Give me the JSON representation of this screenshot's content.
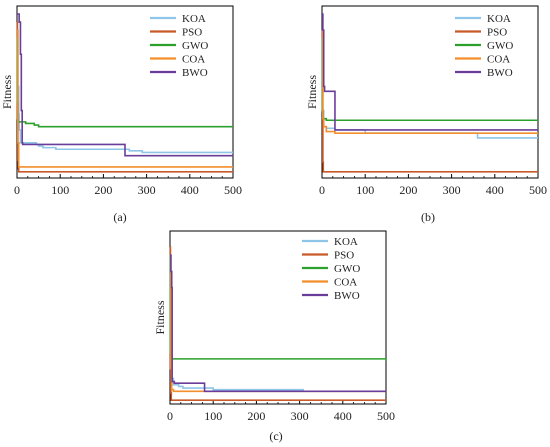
{
  "chart_data": [
    {
      "type": "line",
      "panel_label": "(a)",
      "ylabel": "Fitness",
      "xlim": [
        0,
        500
      ],
      "x_ticks": [
        0,
        100,
        200,
        300,
        400,
        500
      ],
      "grid": false,
      "legend": "top-right",
      "series": [
        {
          "name": "KOA",
          "color": "#8ec5e8",
          "x": [
            0,
            2,
            4,
            5,
            8,
            30,
            40,
            45,
            50,
            60,
            80,
            90,
            100,
            250,
            260,
            290,
            300,
            500
          ],
          "y": [
            0.9,
            0.55,
            0.38,
            0.28,
            0.2,
            0.2,
            0.2,
            0.19,
            0.18,
            0.17,
            0.17,
            0.16,
            0.16,
            0.16,
            0.15,
            0.14,
            0.14,
            0.14
          ]
        },
        {
          "name": "PSO",
          "color": "#c85a28",
          "x": [
            0,
            1,
            2,
            3,
            4,
            500
          ],
          "y": [
            0.95,
            0.35,
            0.09,
            0.04,
            0.02,
            0.02
          ]
        },
        {
          "name": "GWO",
          "color": "#2ca02c",
          "x": [
            0,
            1,
            2,
            20,
            40,
            50,
            100,
            300,
            500
          ],
          "y": [
            0.85,
            0.45,
            0.33,
            0.32,
            0.31,
            0.3,
            0.3,
            0.3,
            0.3
          ]
        },
        {
          "name": "COA",
          "color": "#f28e2b",
          "x": [
            0,
            2,
            4,
            500
          ],
          "y": [
            0.9,
            0.2,
            0.05,
            0.05
          ]
        },
        {
          "name": "BWO",
          "color": "#6a3d9a",
          "x": [
            0,
            5,
            8,
            10,
            12,
            13,
            245,
            250,
            500
          ],
          "y": [
            1.0,
            0.95,
            0.75,
            0.4,
            0.2,
            0.19,
            0.19,
            0.12,
            0.12
          ]
        }
      ]
    },
    {
      "type": "line",
      "panel_label": "(b)",
      "ylabel": "Fitness",
      "xlim": [
        0,
        500
      ],
      "x_ticks": [
        0,
        100,
        200,
        300,
        400,
        500
      ],
      "grid": false,
      "legend": "top-right",
      "series": [
        {
          "name": "KOA",
          "color": "#8ec5e8",
          "x": [
            0,
            2,
            4,
            10,
            30,
            100,
            200,
            360,
            500
          ],
          "y": [
            0.85,
            0.4,
            0.3,
            0.29,
            0.28,
            0.26,
            0.26,
            0.23,
            0.23
          ]
        },
        {
          "name": "PSO",
          "color": "#c85a28",
          "x": [
            0,
            1,
            2,
            3,
            500
          ],
          "y": [
            0.9,
            0.4,
            0.08,
            0.02,
            0.02
          ]
        },
        {
          "name": "GWO",
          "color": "#2ca02c",
          "x": [
            0,
            1,
            2,
            10,
            500
          ],
          "y": [
            0.85,
            0.4,
            0.35,
            0.34,
            0.34
          ]
        },
        {
          "name": "COA",
          "color": "#f28e2b",
          "x": [
            0,
            2,
            4,
            10,
            20,
            30,
            50,
            100,
            500
          ],
          "y": [
            0.9,
            0.35,
            0.3,
            0.27,
            0.27,
            0.26,
            0.26,
            0.26,
            0.26
          ]
        },
        {
          "name": "BWO",
          "color": "#6a3d9a",
          "x": [
            0,
            2,
            4,
            6,
            25,
            30,
            100,
            500
          ],
          "y": [
            1.0,
            0.9,
            0.55,
            0.52,
            0.52,
            0.28,
            0.28,
            0.28
          ]
        }
      ]
    },
    {
      "type": "line",
      "panel_label": "(c)",
      "ylabel": "Fitness",
      "xlim": [
        0,
        500
      ],
      "x_ticks": [
        0,
        100,
        200,
        300,
        400,
        500
      ],
      "grid": false,
      "legend": "top-right",
      "series": [
        {
          "name": "KOA",
          "color": "#8ec5e8",
          "x": [
            0,
            2,
            4,
            8,
            20,
            30,
            100,
            130,
            310
          ],
          "y": [
            0.9,
            0.3,
            0.14,
            0.1,
            0.09,
            0.08,
            0.07,
            0.07,
            0.07
          ]
        },
        {
          "name": "PSO",
          "color": "#c85a28",
          "x": [
            0,
            1,
            2,
            3,
            500
          ],
          "y": [
            0.95,
            0.2,
            0.05,
            0.005,
            0.005
          ]
        },
        {
          "name": "GWO",
          "color": "#2ca02c",
          "x": [
            0,
            1,
            2,
            10,
            300,
            500
          ],
          "y": [
            0.9,
            0.3,
            0.26,
            0.26,
            0.26,
            0.25
          ]
        },
        {
          "name": "COA",
          "color": "#f28e2b",
          "x": [
            0,
            2,
            4,
            8,
            500
          ],
          "y": [
            0.9,
            0.2,
            0.07,
            0.06,
            0.06
          ]
        },
        {
          "name": "BWO",
          "color": "#6a3d9a",
          "x": [
            0,
            2,
            4,
            5,
            10,
            20,
            40,
            70,
            80,
            500
          ],
          "y": [
            0.9,
            0.8,
            0.7,
            0.12,
            0.11,
            0.11,
            0.11,
            0.11,
            0.06,
            0.06
          ]
        }
      ]
    }
  ]
}
